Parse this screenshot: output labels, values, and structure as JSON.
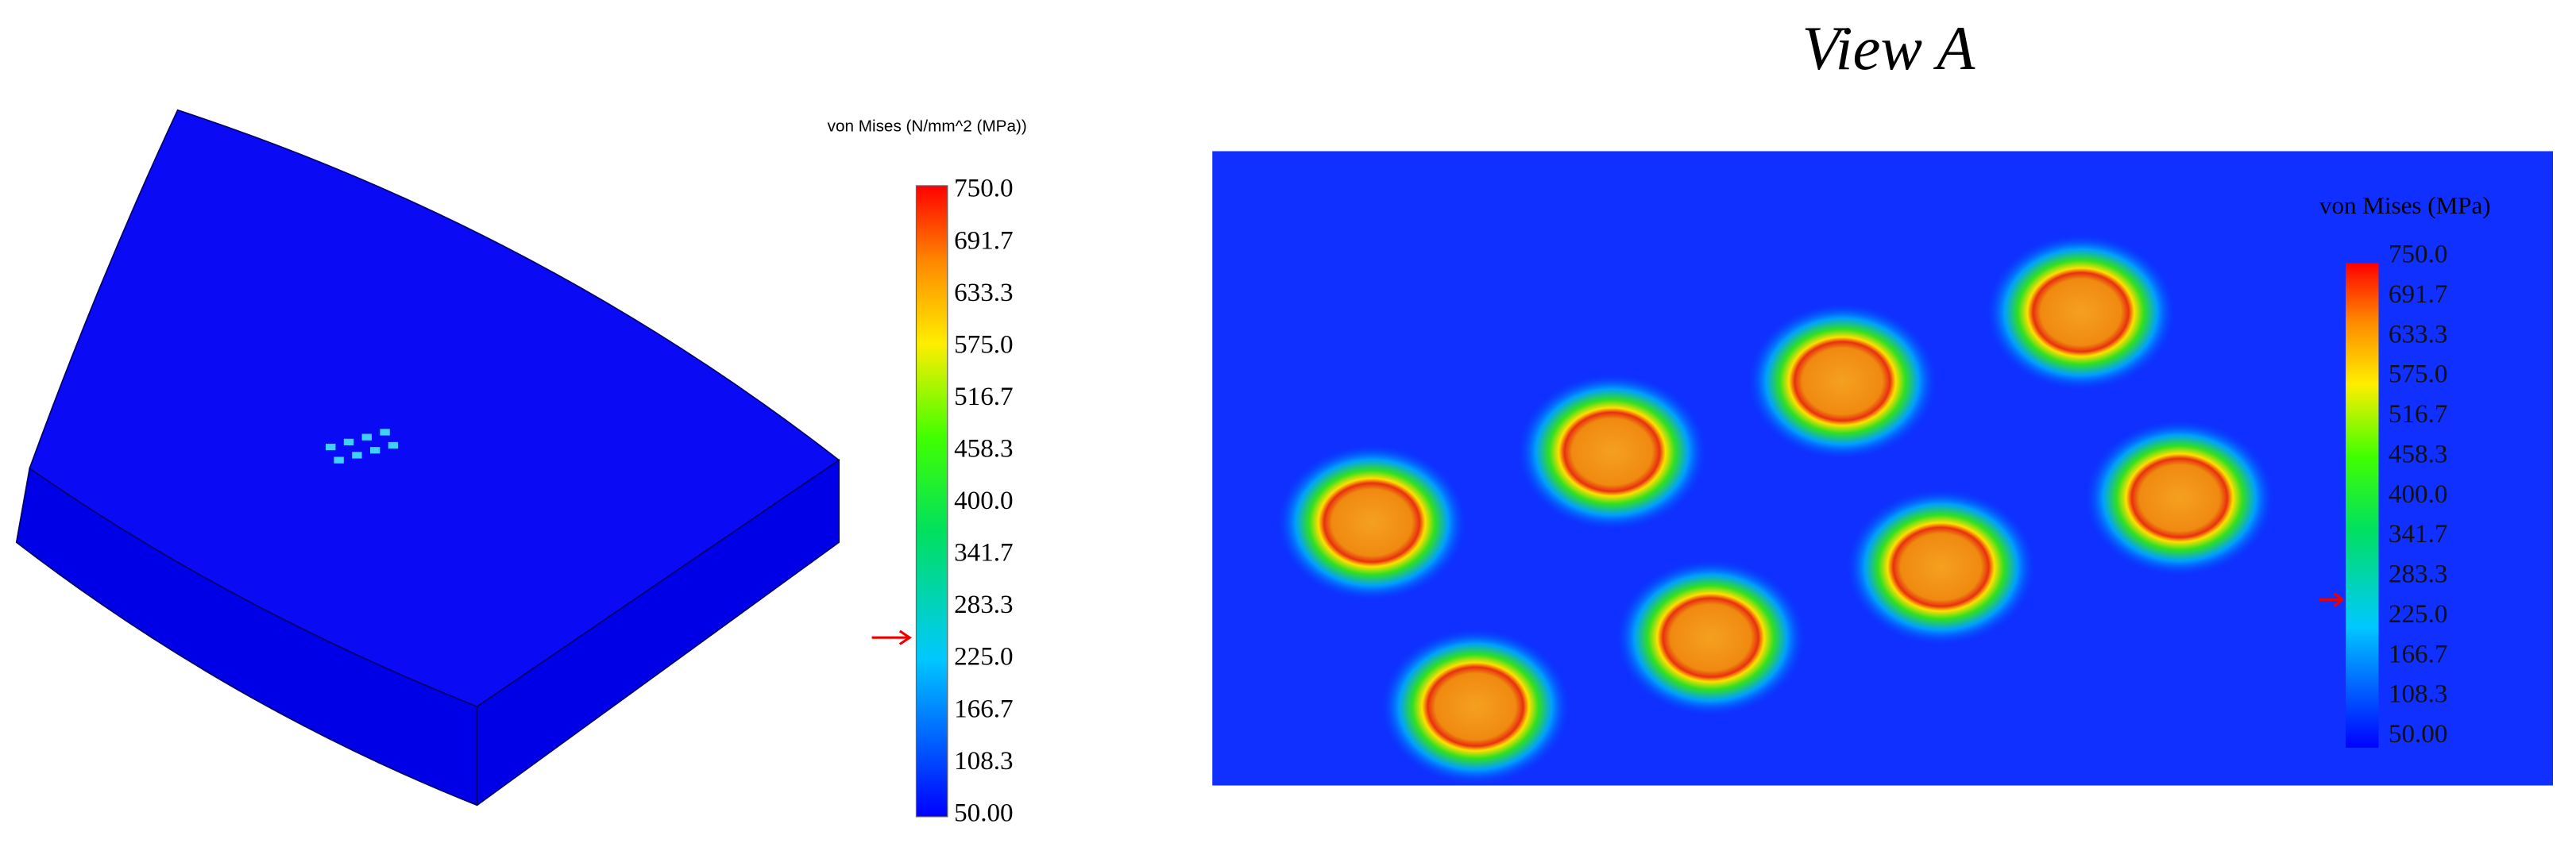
{
  "left_panel": {
    "legend_title": "von Mises (N/mm^2 (MPa))",
    "legend_labels": [
      "750.0",
      "691.7",
      "633.3",
      "575.0",
      "516.7",
      "458.3",
      "400.0",
      "341.7",
      "283.3",
      "225.0",
      "166.7",
      "108.3",
      "50.00"
    ]
  },
  "right_panel": {
    "title": "View A",
    "legend_title": "von Mises (MPa)",
    "legend_labels": [
      "750.0",
      "691.7",
      "633.3",
      "575.0",
      "516.7",
      "458.3",
      "400.0",
      "341.7",
      "283.3",
      "225.0",
      "166.7",
      "108.3",
      "50.00"
    ]
  }
}
